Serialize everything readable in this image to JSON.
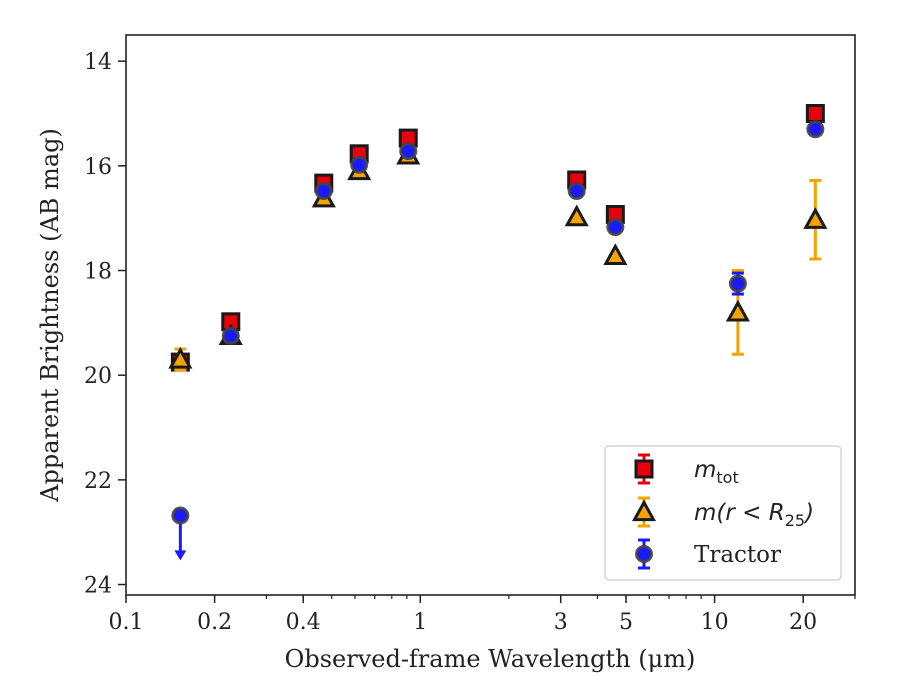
{
  "chart_data": {
    "type": "scatter",
    "title": "",
    "xlabel": "Observed-frame Wavelength (μm)",
    "ylabel": "Apparent Brightness (AB mag)",
    "xscale": "log",
    "xlim": [
      0.1,
      30
    ],
    "ylim": [
      24.2,
      13.5
    ],
    "y_inverted": true,
    "grid": false,
    "legend_position": "lower-right",
    "x_ticks": [
      {
        "value": 0.1,
        "label": "0.1"
      },
      {
        "value": 0.2,
        "label": "0.2"
      },
      {
        "value": 0.4,
        "label": "0.4"
      },
      {
        "value": 1,
        "label": "1"
      },
      {
        "value": 3,
        "label": "3"
      },
      {
        "value": 5,
        "label": "5"
      },
      {
        "value": 10,
        "label": "10"
      },
      {
        "value": 20,
        "label": "20"
      }
    ],
    "y_ticks": [
      {
        "value": 14,
        "label": "14"
      },
      {
        "value": 16,
        "label": "16"
      },
      {
        "value": 18,
        "label": "18"
      },
      {
        "value": 20,
        "label": "20"
      },
      {
        "value": 22,
        "label": "22"
      },
      {
        "value": 24,
        "label": "24"
      }
    ],
    "series": [
      {
        "name": "m_tot",
        "legend_main": "m",
        "legend_sub": "tot",
        "marker": "square",
        "fill_color": "#e8000b",
        "edge_color": "#1a1a1a",
        "error_color": "#e8000b",
        "points": [
          {
            "x": 0.153,
            "y": 19.75,
            "yerr": 0.05
          },
          {
            "x": 0.227,
            "y": 18.98,
            "yerr": 0.05
          },
          {
            "x": 0.47,
            "y": 16.33,
            "yerr": 0.05
          },
          {
            "x": 0.62,
            "y": 15.77,
            "yerr": 0.05
          },
          {
            "x": 0.91,
            "y": 15.47,
            "yerr": 0.05
          },
          {
            "x": 3.4,
            "y": 16.27,
            "yerr": 0.05
          },
          {
            "x": 4.6,
            "y": 16.93,
            "yerr": 0.05
          },
          {
            "x": 22.0,
            "y": 15.0,
            "yerr": 0.05
          }
        ]
      },
      {
        "name": "m(r < R25)",
        "legend_main": "m(r < R",
        "legend_sub": "25",
        "legend_tail": ")",
        "marker": "triangle",
        "fill_color": "#f5a300",
        "edge_color": "#1a1a1a",
        "error_color": "#f5a300",
        "points": [
          {
            "x": 0.153,
            "y": 19.7,
            "yerr": 0.2
          },
          {
            "x": 0.227,
            "y": 19.25,
            "yerr": 0.05
          },
          {
            "x": 0.47,
            "y": 16.62,
            "yerr": 0.05
          },
          {
            "x": 0.62,
            "y": 16.1,
            "yerr": 0.05
          },
          {
            "x": 0.91,
            "y": 15.8,
            "yerr": 0.05
          },
          {
            "x": 3.4,
            "y": 16.98,
            "yerr": 0.05
          },
          {
            "x": 4.6,
            "y": 17.72,
            "yerr": 0.05
          },
          {
            "x": 12.0,
            "y": 18.8,
            "yerr": 0.8
          },
          {
            "x": 22.0,
            "y": 17.03,
            "yerr": 0.75
          }
        ]
      },
      {
        "name": "Tractor",
        "legend_main": "Tractor",
        "marker": "circle",
        "fill_color": "#1a1aff",
        "edge_color": "#444444",
        "error_color": "#1a1aff",
        "points": [
          {
            "x": 0.153,
            "y": 22.68,
            "upper_limit": true,
            "arrow_to": 23.5
          },
          {
            "x": 0.227,
            "y": 19.25,
            "yerr": 0.05
          },
          {
            "x": 0.47,
            "y": 16.48,
            "yerr": 0.05
          },
          {
            "x": 0.62,
            "y": 15.98,
            "yerr": 0.05
          },
          {
            "x": 0.91,
            "y": 15.72,
            "yerr": 0.05
          },
          {
            "x": 3.4,
            "y": 16.48,
            "yerr": 0.05
          },
          {
            "x": 4.6,
            "y": 17.17,
            "yerr": 0.05
          },
          {
            "x": 12.0,
            "y": 18.25,
            "yerr": 0.2
          },
          {
            "x": 22.0,
            "y": 15.3,
            "yerr": 0.05
          }
        ]
      }
    ]
  }
}
